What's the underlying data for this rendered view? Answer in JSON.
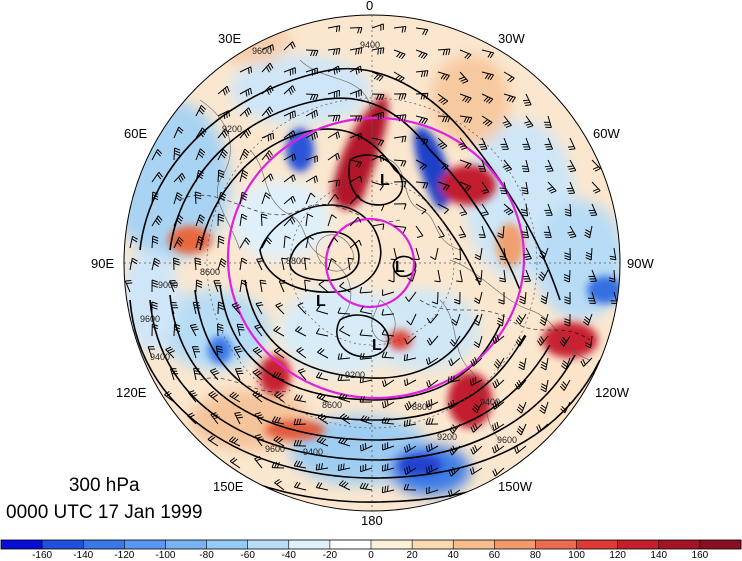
{
  "map": {
    "title_level": "300 hPa",
    "title_time": "0000 UTC 17 Jan 1999",
    "longitude_labels": {
      "top": "0",
      "bottom": "180",
      "left": "90E",
      "right": "90W",
      "upper_left_1": "30E",
      "upper_left_2": "60E",
      "upper_right_1": "30W",
      "upper_right_2": "60W",
      "lower_left_1": "120E",
      "lower_left_2": "150E",
      "lower_right_1": "120W",
      "lower_right_2": "150W"
    },
    "low_markers": [
      "L",
      "L",
      "L",
      "L"
    ],
    "contour_labels": [
      "9400",
      "9600",
      "9200",
      "8800",
      "8600",
      "8600",
      "9200",
      "9400",
      "9600",
      "8800",
      "9200",
      "9400",
      "9000",
      "9400",
      "9600",
      "9600"
    ],
    "colors": {
      "ring": "#e020e0",
      "contour": "#000000",
      "strong_pos": "#b2182b",
      "strong_neg": "#2140c8"
    }
  },
  "colorbar": {
    "tick_labels": [
      "-160",
      "-140",
      "-120",
      "-100",
      "-80",
      "-60",
      "-40",
      "-20",
      "0",
      "20",
      "40",
      "60",
      "80",
      "100",
      "120",
      "140",
      "160"
    ],
    "colors": [
      "#0b0bd6",
      "#2050e0",
      "#3a78e8",
      "#5a98f0",
      "#78b4f4",
      "#96cbf6",
      "#b8def8",
      "#dff1fb",
      "#ffffff",
      "#fdf0d8",
      "#fbd9b2",
      "#f8bd8c",
      "#f39a6c",
      "#eb6a50",
      "#dd3a36",
      "#c61e2a",
      "#a51426",
      "#8a0f22"
    ]
  }
}
